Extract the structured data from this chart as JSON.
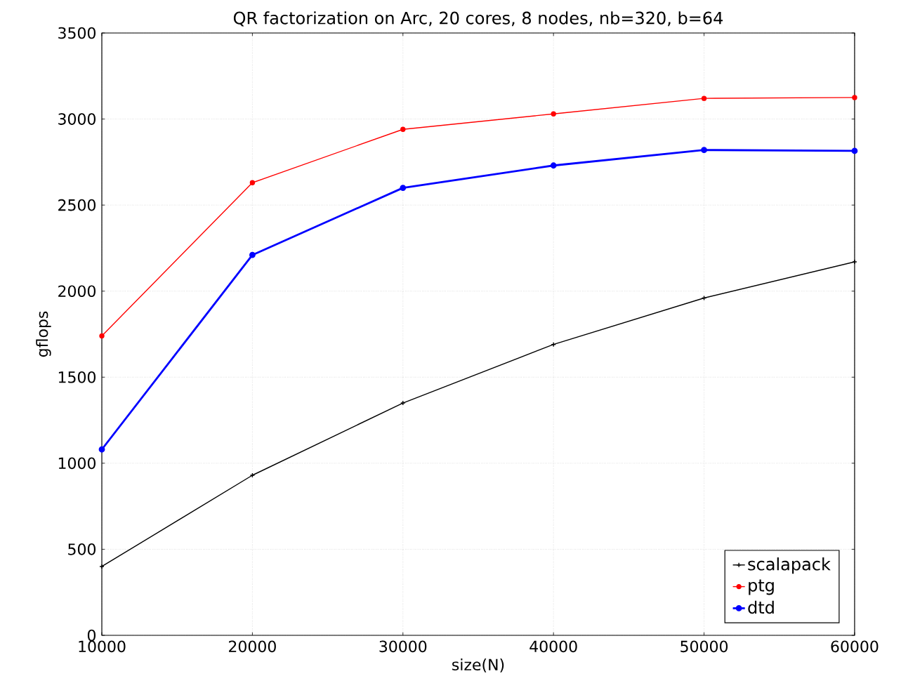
{
  "chart_data": {
    "type": "line",
    "title": "QR factorization on Arc, 20 cores, 8 nodes, nb=320, b=64",
    "xlabel": "size(N)",
    "ylabel": "gflops",
    "x": [
      10000,
      20000,
      30000,
      40000,
      50000,
      60000
    ],
    "series": [
      {
        "name": "scalapack",
        "color": "#000000",
        "marker": "cross",
        "values": [
          400,
          930,
          1350,
          1690,
          1960,
          2170
        ]
      },
      {
        "name": "ptg",
        "color": "#ff0000",
        "marker": "circle",
        "values": [
          1740,
          2630,
          2940,
          3030,
          3120,
          3125
        ]
      },
      {
        "name": "dtd",
        "color": "#0000ff",
        "marker": "circle",
        "values": [
          1080,
          2210,
          2600,
          2730,
          2820,
          2815
        ]
      }
    ],
    "xlim": [
      10000,
      60000
    ],
    "ylim": [
      0,
      3500
    ],
    "xticks": [
      10000,
      20000,
      30000,
      40000,
      50000,
      60000
    ],
    "yticks": [
      0,
      500,
      1000,
      1500,
      2000,
      2500,
      3000,
      3500
    ],
    "grid": true,
    "legend": "bottom right",
    "line_style": "solid"
  }
}
